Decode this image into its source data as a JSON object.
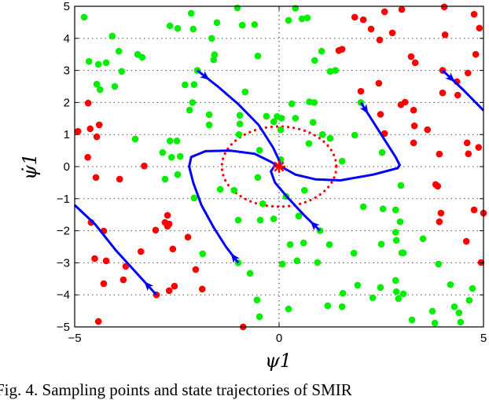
{
  "chart_data": {
    "type": "scatter",
    "xlabel": "ψ1",
    "ylabel": "ψ̇1",
    "xlim": [
      -5,
      5
    ],
    "ylim": [
      -5,
      5
    ],
    "xticks": [
      "−5",
      "0",
      "5"
    ],
    "xtick_values": [
      -5,
      0,
      5
    ],
    "yticks": [
      "−5",
      "−4",
      "−3",
      "−2",
      "−1",
      "0",
      "1",
      "2",
      "3",
      "4",
      "5"
    ],
    "ytick_values": [
      -5,
      -4,
      -3,
      -2,
      -1,
      0,
      1,
      2,
      3,
      4,
      5
    ],
    "grid": "dotted",
    "colors": {
      "green": "#00ee00",
      "red": "#ff0000",
      "trajectory": "#0000ff",
      "region": "#ff0000"
    },
    "series": [
      {
        "name": "green sampling points",
        "color": "#00ee00",
        "points": [
          [
            -4.77,
            4.66
          ],
          [
            -4.65,
            3.28
          ],
          [
            -4.42,
            3.19
          ],
          [
            -4.23,
            3.24
          ],
          [
            -4.08,
            4.07
          ],
          [
            -3.92,
            3.6
          ],
          [
            -3.85,
            2.97
          ],
          [
            -4.46,
            2.57
          ],
          [
            -4.38,
            2.4
          ],
          [
            -4.02,
            2.5
          ],
          [
            -3.46,
            3.5
          ],
          [
            -3.35,
            3.41
          ],
          [
            -3.52,
            0.86
          ],
          [
            -2.85,
            0.44
          ],
          [
            -2.63,
            0.29
          ],
          [
            -2.42,
            0.32
          ],
          [
            -2.67,
            0.8
          ],
          [
            -2.5,
            0.8
          ],
          [
            -2.67,
            4.39
          ],
          [
            -2.48,
            4.31
          ],
          [
            -2.15,
            4.78
          ],
          [
            -2.1,
            4.29
          ],
          [
            -2.3,
            2.55
          ],
          [
            -2.08,
            2.56
          ],
          [
            -2.12,
            2.0
          ],
          [
            -2.19,
            1.76
          ],
          [
            -1.71,
            1.62
          ],
          [
            -1.71,
            1.3
          ],
          [
            -1.65,
            4.0
          ],
          [
            -1.58,
            3.49
          ],
          [
            -1.6,
            3.33
          ],
          [
            -1.52,
            4.49
          ],
          [
            -2.0,
            3.0
          ],
          [
            -1.02,
            4.95
          ],
          [
            -0.9,
            4.41
          ],
          [
            -0.83,
            2.33
          ],
          [
            -0.96,
            1.6
          ],
          [
            -0.96,
            1.33
          ],
          [
            -0.98,
            1.0
          ],
          [
            -0.6,
            4.43
          ],
          [
            -0.52,
            3.45
          ],
          [
            0.23,
            4.56
          ],
          [
            0.4,
            4.94
          ],
          [
            0.56,
            4.61
          ],
          [
            0.69,
            4.64
          ],
          [
            1.04,
            3.6
          ],
          [
            0.87,
            3.31
          ],
          [
            1.25,
            2.97
          ],
          [
            1.38,
            3.0
          ],
          [
            0.31,
            1.96
          ],
          [
            0.74,
            2.02
          ],
          [
            0.86,
            2.0
          ],
          [
            -0.31,
            1.57
          ],
          [
            -0.13,
            1.4
          ],
          [
            -0.05,
            1.56
          ],
          [
            0.06,
            1.51
          ],
          [
            0.4,
            1.51
          ],
          [
            0.83,
            1.38
          ],
          [
            0.04,
            1.15
          ],
          [
            1.06,
            1.0
          ],
          [
            1.25,
            0.88
          ],
          [
            0.73,
            0.72
          ],
          [
            -0.48,
            0.51
          ],
          [
            0.04,
            0.22
          ],
          [
            1.54,
            0.17
          ],
          [
            1.85,
            0.98
          ],
          [
            2.52,
            0.44
          ],
          [
            2.0,
            2.0
          ],
          [
            -2.79,
            -0.39
          ],
          [
            -2.48,
            -0.25
          ],
          [
            -2.08,
            -0.98
          ],
          [
            -1.44,
            -0.71
          ],
          [
            -1.1,
            -0.74
          ],
          [
            -0.52,
            -0.34
          ],
          [
            -0.4,
            -1.16
          ],
          [
            -1.0,
            -1.67
          ],
          [
            -0.46,
            -1.67
          ],
          [
            -0.13,
            -1.63
          ],
          [
            -1.87,
            -2.72
          ],
          [
            -1.0,
            -3.0
          ],
          [
            -0.71,
            -3.33
          ],
          [
            -0.54,
            -4.16
          ],
          [
            -0.48,
            -4.68
          ],
          [
            0.08,
            -3.04
          ],
          [
            0.62,
            -0.74
          ],
          [
            0.17,
            -0.93
          ],
          [
            0.48,
            -1.54
          ],
          [
            1.0,
            -2.0
          ],
          [
            2.06,
            -1.25
          ],
          [
            2.54,
            -1.32
          ],
          [
            2.85,
            -1.35
          ],
          [
            2.98,
            -0.59
          ],
          [
            2.96,
            -1.72
          ],
          [
            2.85,
            -2.05
          ],
          [
            2.87,
            -2.3
          ],
          [
            3.0,
            -2.69
          ],
          [
            3.04,
            -2.69
          ],
          [
            2.5,
            -2.42
          ],
          [
            1.83,
            -2.7
          ],
          [
            1.23,
            -2.43
          ],
          [
            0.6,
            -2.38
          ],
          [
            0.27,
            -2.43
          ],
          [
            0.44,
            -2.94
          ],
          [
            0.94,
            -2.99
          ],
          [
            3.52,
            -2.25
          ],
          [
            3.9,
            -3.04
          ],
          [
            2.85,
            -3.55
          ],
          [
            2.48,
            -3.77
          ],
          [
            1.92,
            -3.7
          ],
          [
            2.87,
            -3.9
          ],
          [
            3.04,
            -3.97
          ],
          [
            2.92,
            -4.12
          ],
          [
            2.29,
            -4.09
          ],
          [
            1.56,
            -3.95
          ],
          [
            1.19,
            -4.34
          ],
          [
            1.54,
            -4.37
          ],
          [
            0.23,
            -4.44
          ],
          [
            3.25,
            -4.78
          ],
          [
            3.81,
            -4.88
          ],
          [
            3.75,
            -4.51
          ],
          [
            4.19,
            -3.68
          ],
          [
            4.29,
            -4.37
          ],
          [
            4.4,
            -4.56
          ],
          [
            4.44,
            -4.85
          ],
          [
            4.65,
            -4.17
          ],
          [
            4.73,
            -3.8
          ]
        ]
      },
      {
        "name": "red sampling points",
        "color": "#ff0000",
        "points": [
          [
            -4.67,
            1.98
          ],
          [
            -4.92,
            1.1
          ],
          [
            -4.62,
            1.18
          ],
          [
            -4.4,
            1.3
          ],
          [
            -4.46,
            0.93
          ],
          [
            -4.68,
            0.29
          ],
          [
            -3.3,
            0.02
          ],
          [
            1.85,
            4.66
          ],
          [
            2.06,
            4.58
          ],
          [
            2.25,
            4.29
          ],
          [
            2.58,
            4.83
          ],
          [
            3.0,
            4.9
          ],
          [
            2.77,
            4.17
          ],
          [
            2.46,
            3.95
          ],
          [
            1.46,
            3.62
          ],
          [
            1.54,
            3.66
          ],
          [
            3.23,
            3.43
          ],
          [
            3.33,
            3.24
          ],
          [
            4.04,
            4.98
          ],
          [
            4.77,
            4.75
          ],
          [
            4.9,
            4.32
          ],
          [
            4.06,
            4.11
          ],
          [
            4.81,
            3.5
          ],
          [
            4.0,
            3.0
          ],
          [
            4.62,
            2.92
          ],
          [
            4.35,
            2.65
          ],
          [
            4.37,
            2.23
          ],
          [
            4.0,
            2.3
          ],
          [
            2.44,
            2.6
          ],
          [
            2.0,
            2.35
          ],
          [
            2.98,
            1.93
          ],
          [
            3.08,
            2.01
          ],
          [
            3.29,
            1.76
          ],
          [
            2.48,
            1.63
          ],
          [
            3.31,
            1.27
          ],
          [
            3.63,
            1.15
          ],
          [
            2.58,
            1.03
          ],
          [
            3.29,
            0.74
          ],
          [
            4.6,
            0.74
          ],
          [
            4.88,
            0.6
          ],
          [
            3.92,
            0.39
          ],
          [
            4.63,
            0.4
          ],
          [
            -4.48,
            -0.34
          ],
          [
            -3.9,
            -0.39
          ],
          [
            -4.6,
            -1.74
          ],
          [
            -4.29,
            -2.01
          ],
          [
            -4.51,
            -2.87
          ],
          [
            -4.23,
            -2.94
          ],
          [
            -3.75,
            -3.11
          ],
          [
            -3.38,
            -2.65
          ],
          [
            -3.81,
            -3.53
          ],
          [
            -4.29,
            -3.65
          ],
          [
            -4.42,
            -4.83
          ],
          [
            -3.02,
            -1.98
          ],
          [
            -2.73,
            -1.52
          ],
          [
            -2.79,
            -1.74
          ],
          [
            -2.73,
            -1.86
          ],
          [
            -2.69,
            -1.79
          ],
          [
            -2.6,
            -2.57
          ],
          [
            -2.23,
            -2.2
          ],
          [
            -2.04,
            -3.21
          ],
          [
            -1.88,
            -3.82
          ],
          [
            -2.56,
            -3.73
          ],
          [
            -2.69,
            -3.87
          ],
          [
            -3.0,
            -4.0
          ],
          [
            -0.88,
            -5.0
          ],
          [
            3.83,
            -0.56
          ],
          [
            3.88,
            -0.61
          ],
          [
            3.96,
            -1.45
          ],
          [
            3.92,
            -1.72
          ],
          [
            4.77,
            -1.35
          ],
          [
            5.0,
            -1.45
          ],
          [
            4.58,
            -2.33
          ],
          [
            4.94,
            -2.99
          ]
        ]
      }
    ],
    "trajectories": [
      {
        "points": [
          [
            -2,
            3
          ],
          [
            -1.5,
            2.5
          ],
          [
            -1,
            1.95
          ],
          [
            -0.5,
            1.3
          ],
          [
            -0.15,
            0.6
          ],
          [
            0,
            0.2
          ],
          [
            0.03,
            0
          ]
        ],
        "arrow_at": 1
      },
      {
        "points": [
          [
            2,
            2
          ],
          [
            2.3,
            1.4
          ],
          [
            2.6,
            0.8
          ],
          [
            2.85,
            0.3
          ],
          [
            2.95,
            0.05
          ],
          [
            2.9,
            -0.05
          ],
          [
            2.3,
            -0.25
          ],
          [
            1.5,
            -0.43
          ],
          [
            0.9,
            -0.4
          ],
          [
            0.4,
            -0.25
          ],
          [
            0.05,
            0
          ]
        ],
        "arrow_at": 1
      },
      {
        "points": [
          [
            -1,
            -3
          ],
          [
            -1.3,
            -2.5
          ],
          [
            -1.6,
            -1.9
          ],
          [
            -1.9,
            -1.2
          ],
          [
            -2.1,
            -0.5
          ],
          [
            -2.2,
            0
          ],
          [
            -2.15,
            0.3
          ],
          [
            -1.8,
            0.48
          ],
          [
            -1.2,
            0.5
          ],
          [
            -0.6,
            0.4
          ],
          [
            -0.2,
            0.15
          ],
          [
            0,
            0
          ]
        ],
        "arrow_at": 1
      },
      {
        "points": [
          [
            1,
            -2
          ],
          [
            0.6,
            -1.5
          ],
          [
            0.2,
            -0.95
          ],
          [
            -0.1,
            -0.5
          ],
          [
            -0.2,
            -0.15
          ],
          [
            -0.1,
            0.05
          ],
          [
            0,
            0
          ]
        ],
        "arrow_at": 1
      },
      {
        "points": [
          [
            -3,
            -4
          ],
          [
            -3.5,
            -3.3
          ],
          [
            -4,
            -2.6
          ],
          [
            -4.5,
            -1.8
          ],
          [
            -5,
            -1.2
          ]
        ],
        "arrow_at": 1
      },
      {
        "points": [
          [
            4,
            3
          ],
          [
            4.5,
            2.4
          ],
          [
            5,
            1.75
          ]
        ],
        "arrow_at": 1
      }
    ],
    "region": {
      "type": "ellipse",
      "center": [
        0,
        0
      ],
      "rx": 1.4,
      "ry": 1.25
    },
    "equilibrium": [
      0,
      0
    ]
  },
  "caption": "Fig. 4.  Sampling points and state trajectories of SMIR"
}
